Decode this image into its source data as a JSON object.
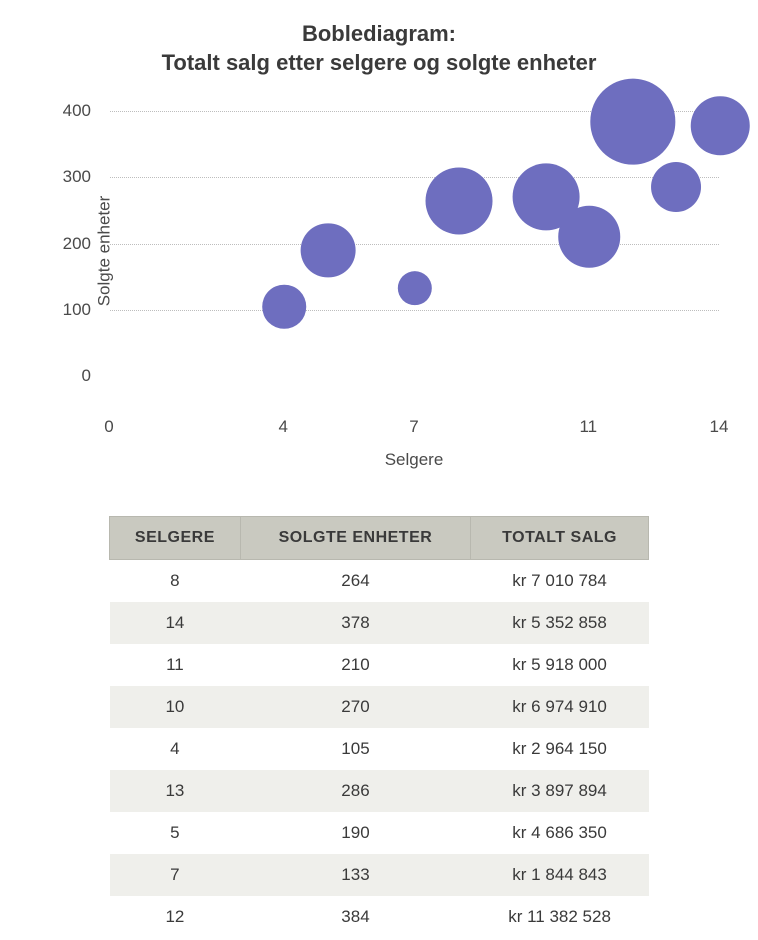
{
  "chart": {
    "type": "bubble",
    "title_line1": "Boblediagram:",
    "title_line2": "Totalt salg etter selgere og solgte enheter",
    "title_fontsize": 22,
    "title_color": "#3a3a3a",
    "xlabel": "Selgere",
    "ylabel": "Solgte enheter",
    "label_fontsize": 17,
    "label_color": "#4a4a4a",
    "xlim": [
      0,
      14
    ],
    "ylim": [
      0,
      430
    ],
    "xticks": [
      0,
      4,
      7,
      11,
      14
    ],
    "yticks": [
      0,
      100,
      200,
      300,
      400
    ],
    "grid_color": "#bdbdbd",
    "grid_style": "dotted",
    "background_color": "#ffffff",
    "bubble_color": "#6e6ebf",
    "bubble_opacity": 1.0,
    "size_scale": 6.4e-06,
    "series": [
      {
        "x": 8,
        "y": 264,
        "size": 7010784
      },
      {
        "x": 14,
        "y": 378,
        "size": 5352858
      },
      {
        "x": 11,
        "y": 210,
        "size": 5918000
      },
      {
        "x": 10,
        "y": 270,
        "size": 6974910
      },
      {
        "x": 4,
        "y": 105,
        "size": 2964150
      },
      {
        "x": 13,
        "y": 286,
        "size": 3897894
      },
      {
        "x": 5,
        "y": 190,
        "size": 4686350
      },
      {
        "x": 7,
        "y": 133,
        "size": 1844843
      },
      {
        "x": 12,
        "y": 384,
        "size": 11382528
      }
    ]
  },
  "table": {
    "header_bg": "#c9c9c0",
    "header_border": "#b8b8af",
    "row_even_bg": "#efefeb",
    "row_odd_bg": "#ffffff",
    "text_color": "#3a3a3a",
    "fontsize": 17,
    "columns": [
      "SELGERE",
      "SOLGTE ENHETER",
      "TOTALT SALG"
    ],
    "rows": [
      [
        "8",
        "264",
        "kr 7 010 784"
      ],
      [
        "14",
        "378",
        "kr 5 352 858"
      ],
      [
        "11",
        "210",
        "kr 5 918 000"
      ],
      [
        "10",
        "270",
        "kr 6 974 910"
      ],
      [
        "4",
        "105",
        "kr 2 964 150"
      ],
      [
        "13",
        "286",
        "kr 3 897 894"
      ],
      [
        "5",
        "190",
        "kr 4 686 350"
      ],
      [
        "7",
        "133",
        "kr 1 844 843"
      ],
      [
        "12",
        "384",
        "kr 11 382 528"
      ]
    ]
  }
}
